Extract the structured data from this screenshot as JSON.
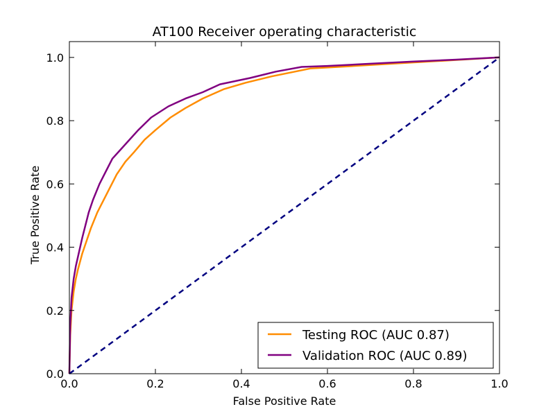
{
  "chart_data": {
    "type": "line",
    "title": "AT100 Receiver operating characteristic",
    "xlabel": "False Positive Rate",
    "ylabel": "True Positive Rate",
    "xlim": [
      0.0,
      1.0
    ],
    "ylim": [
      0.0,
      1.05
    ],
    "grid": false,
    "legend_position": "lower-right",
    "xticks": [
      "0.0",
      "0.2",
      "0.4",
      "0.6",
      "0.8",
      "1.0"
    ],
    "yticks": [
      "0.0",
      "0.2",
      "0.4",
      "0.6",
      "0.8",
      "1.0"
    ],
    "series": [
      {
        "name": "Testing ROC (AUC 0.87)",
        "color": "#ff8c00",
        "style": "solid",
        "x": [
          0.0,
          0.002,
          0.005,
          0.01,
          0.015,
          0.02,
          0.03,
          0.04,
          0.05,
          0.065,
          0.08,
          0.095,
          0.11,
          0.13,
          0.15,
          0.175,
          0.2,
          0.235,
          0.27,
          0.31,
          0.36,
          0.41,
          0.47,
          0.56,
          0.65,
          0.75,
          0.85,
          1.0
        ],
        "y": [
          0.0,
          0.12,
          0.2,
          0.26,
          0.3,
          0.33,
          0.38,
          0.42,
          0.46,
          0.51,
          0.55,
          0.59,
          0.63,
          0.67,
          0.7,
          0.74,
          0.77,
          0.81,
          0.84,
          0.87,
          0.9,
          0.92,
          0.94,
          0.965,
          0.972,
          0.98,
          0.988,
          1.0
        ]
      },
      {
        "name": "Validation ROC (AUC 0.89)",
        "color": "#800080",
        "style": "solid",
        "x": [
          0.0,
          0.002,
          0.005,
          0.01,
          0.015,
          0.02,
          0.03,
          0.045,
          0.055,
          0.07,
          0.085,
          0.1,
          0.12,
          0.14,
          0.16,
          0.19,
          0.23,
          0.27,
          0.31,
          0.35,
          0.42,
          0.48,
          0.54,
          0.6,
          0.7,
          0.8,
          0.9,
          1.0
        ],
        "y": [
          0.0,
          0.15,
          0.24,
          0.3,
          0.34,
          0.37,
          0.43,
          0.51,
          0.55,
          0.6,
          0.64,
          0.68,
          0.71,
          0.74,
          0.77,
          0.81,
          0.845,
          0.87,
          0.89,
          0.915,
          0.935,
          0.955,
          0.97,
          0.973,
          0.98,
          0.987,
          0.993,
          1.0
        ]
      },
      {
        "name": "",
        "color": "#000080",
        "style": "dashed",
        "x": [
          0.0,
          1.0
        ],
        "y": [
          0.0,
          1.0
        ]
      }
    ]
  }
}
